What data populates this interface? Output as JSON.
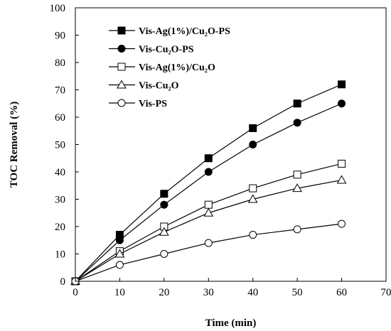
{
  "chart_data": {
    "type": "line",
    "title": "",
    "xlabel": "Time (min)",
    "ylabel": "TOC Removal (%)",
    "xlim": [
      0,
      70
    ],
    "ylim": [
      0,
      100
    ],
    "xticks": [
      0,
      10,
      20,
      30,
      40,
      50,
      60,
      70
    ],
    "yticks": [
      0,
      10,
      20,
      30,
      40,
      50,
      60,
      70,
      80,
      90,
      100
    ],
    "grid": false,
    "legend_position": "top-left",
    "x": [
      0,
      10,
      20,
      30,
      40,
      50,
      60
    ],
    "series": [
      {
        "name": "Vis-Ag(1%)/Cu₂O-PS",
        "marker": "filled-square",
        "values": [
          0,
          17,
          32,
          45,
          56,
          65,
          72
        ]
      },
      {
        "name": "Vis-Cu₂O-PS",
        "marker": "filled-circle",
        "values": [
          0,
          15,
          28,
          40,
          50,
          58,
          65
        ]
      },
      {
        "name": "Vis-Ag(1%)/Cu₂O",
        "marker": "open-square",
        "values": [
          0,
          11,
          20,
          28,
          34,
          39,
          43
        ]
      },
      {
        "name": "Vis-Cu₂O",
        "marker": "open-triangle",
        "values": [
          0,
          10,
          18,
          25,
          30,
          34,
          37
        ]
      },
      {
        "name": "Vis-PS",
        "marker": "open-circle",
        "values": [
          0,
          6,
          10,
          14,
          17,
          19,
          21
        ]
      }
    ]
  }
}
